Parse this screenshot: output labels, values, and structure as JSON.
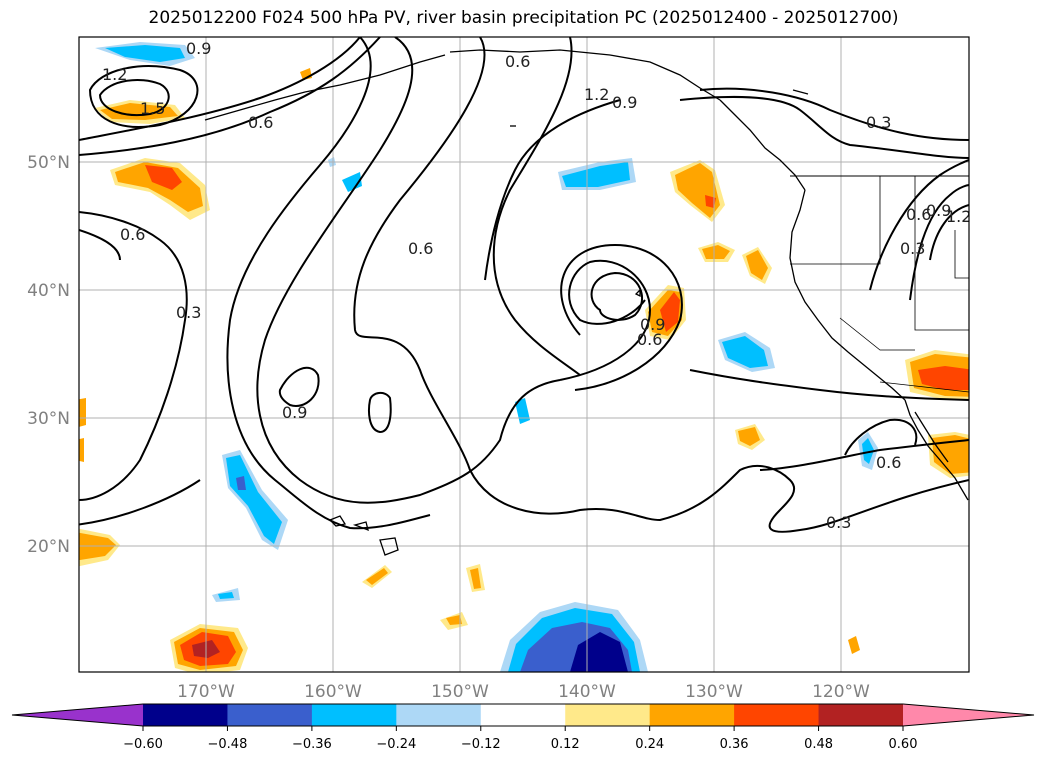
{
  "title": "2025012200 F024 500 hPa PV, river basin precipitation PC (2025012400 - 2025012700)",
  "map": {
    "lat_labels": [
      "50°N",
      "40°N",
      "30°N",
      "20°N"
    ],
    "lon_labels": [
      "170°W",
      "160°W",
      "150°W",
      "140°W",
      "130°W",
      "120°W"
    ],
    "contour_labels": [
      "0.9",
      "1.2",
      "1.5",
      "0.6",
      "0.6",
      "0.3",
      "0.6",
      "1.2",
      "0.9",
      "0.6",
      "0.9",
      "0.6",
      "0.9",
      "0.3",
      "0.6",
      "0.9",
      "0.3",
      "1.2",
      "0.6",
      "0.3"
    ]
  },
  "colorbar": {
    "ticks": [
      "−0.60",
      "−0.48",
      "−0.36",
      "−0.24",
      "−0.12",
      "0.12",
      "0.24",
      "0.36",
      "0.48",
      "0.60"
    ],
    "colors": [
      "#9932cc",
      "#00008b",
      "#3a5fcd",
      "#00bfff",
      "#add8f6",
      "#ffffff",
      "#ffe98a",
      "#ffa500",
      "#ff4500",
      "#b22222",
      "#ff88aa"
    ]
  }
}
